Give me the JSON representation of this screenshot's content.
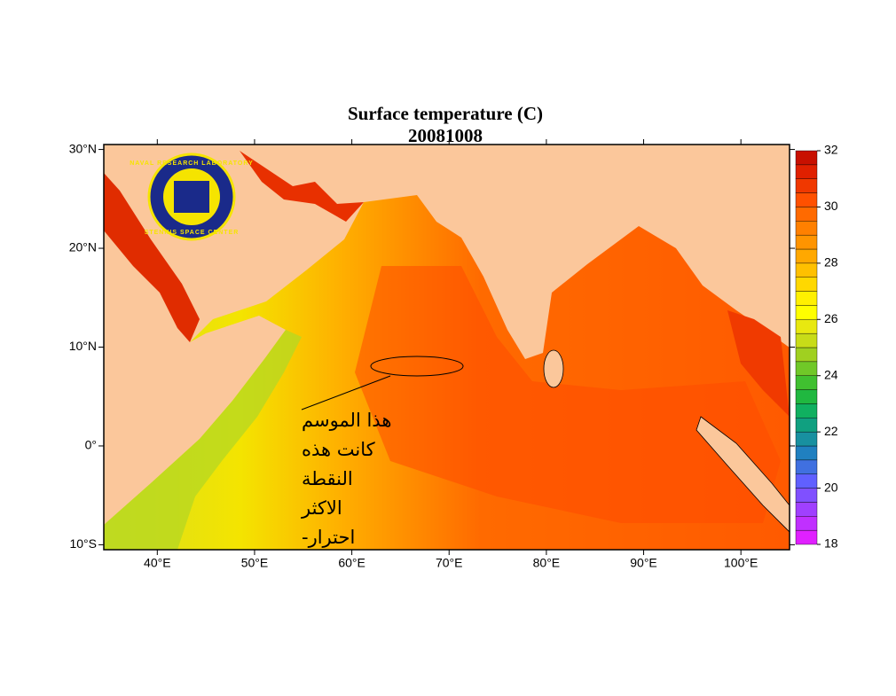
{
  "chart_data": {
    "type": "map",
    "title": "Surface temperature (C)",
    "subtitle": "20081008",
    "xlim": [
      34.5,
      105
    ],
    "ylim": [
      -10.5,
      30.5
    ],
    "xticks": [
      {
        "value": 40,
        "label": "40°E"
      },
      {
        "value": 50,
        "label": "50°E"
      },
      {
        "value": 60,
        "label": "60°E"
      },
      {
        "value": 70,
        "label": "70°E"
      },
      {
        "value": 80,
        "label": "80°E"
      },
      {
        "value": 90,
        "label": "90°E"
      },
      {
        "value": 100,
        "label": "100°E"
      }
    ],
    "yticks": [
      {
        "value": -10,
        "label": "10°S"
      },
      {
        "value": 0,
        "label": "0°"
      },
      {
        "value": 10,
        "label": "10°N"
      },
      {
        "value": 20,
        "label": "20°N"
      },
      {
        "value": 30,
        "label": "30°N"
      }
    ],
    "colorbar": {
      "lim": [
        18,
        32
      ],
      "ticks": [
        18,
        20,
        22,
        24,
        26,
        28,
        30,
        32
      ],
      "colors": [
        "#e020ff",
        "#c030ff",
        "#a040ff",
        "#8050ff",
        "#6060ff",
        "#4070e0",
        "#2080c0",
        "#1890a0",
        "#10a080",
        "#10b060",
        "#20b840",
        "#40c030",
        "#70c828",
        "#a0d020",
        "#c8dc18",
        "#e8e810",
        "#ffff00",
        "#fff000",
        "#ffd800",
        "#ffc000",
        "#ffa800",
        "#ff9400",
        "#ff8000",
        "#ff6a00",
        "#ff5000",
        "#f03800",
        "#e02000",
        "#c81000"
      ]
    },
    "logo": [
      "NAVAL RESEARCH LABORATORY",
      "STENNIS SPACE CENTER"
    ],
    "annotation": [
      "هذا الموسم",
      "كانت هذه",
      "النقطة",
      "الاكثر",
      "احترار-"
    ]
  }
}
